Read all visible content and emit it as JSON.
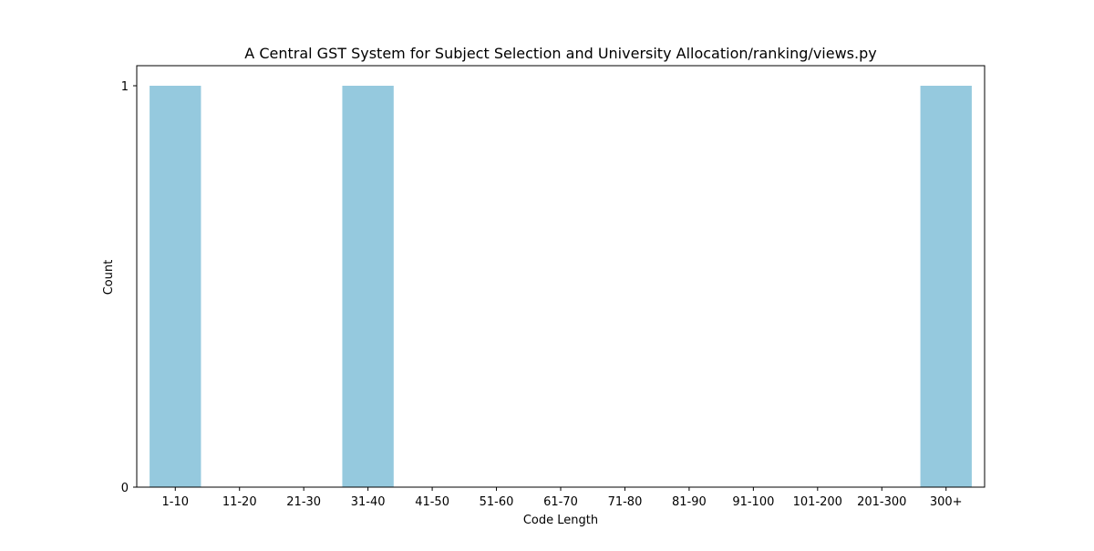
{
  "chart_data": {
    "type": "bar",
    "title": "A Central GST System for Subject Selection and University Allocation/ranking/views.py",
    "xlabel": "Code Length",
    "ylabel": "Count",
    "categories": [
      "1-10",
      "11-20",
      "21-30",
      "31-40",
      "41-50",
      "51-60",
      "61-70",
      "71-80",
      "81-90",
      "91-100",
      "101-200",
      "201-300",
      "300+"
    ],
    "values": [
      1,
      0,
      0,
      1,
      0,
      0,
      0,
      0,
      0,
      0,
      0,
      0,
      1
    ],
    "ylim": [
      0,
      1.05
    ],
    "yticks": [
      0,
      1
    ],
    "grid": false,
    "bar_color": "#95c9de"
  }
}
